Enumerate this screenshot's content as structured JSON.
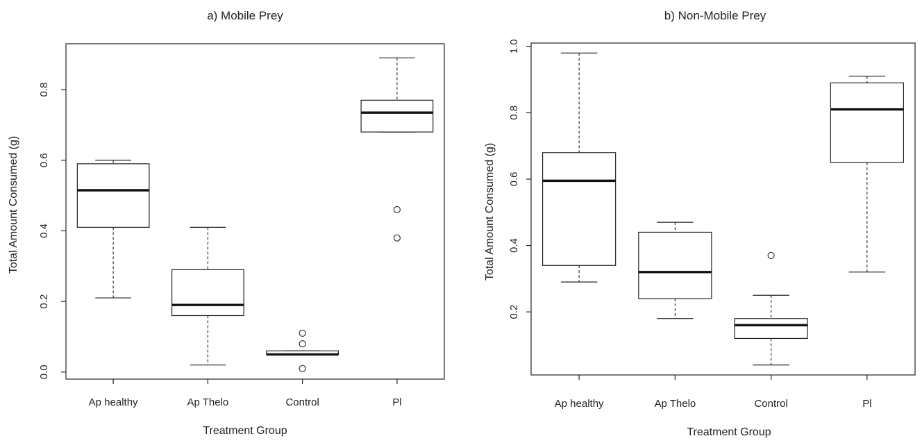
{
  "chart_data": [
    {
      "type": "box",
      "title": "a) Mobile Prey",
      "xlabel": "Treatment Group",
      "ylabel": "Total Amount Consumed (g)",
      "categories": [
        "Ap healthy",
        "Ap Thelo",
        "Control",
        "Pl"
      ],
      "ylim": [
        -0.02,
        0.93
      ],
      "yticks": [
        0.0,
        0.2,
        0.4,
        0.6,
        0.8
      ],
      "ytick_labels": [
        "0.0",
        "0.2",
        "0.4",
        "0.6",
        "0.8"
      ],
      "grid": false,
      "boxes": [
        {
          "category": "Ap healthy",
          "whisker_low": 0.21,
          "q1": 0.41,
          "median": 0.515,
          "q3": 0.59,
          "whisker_high": 0.6,
          "outliers": []
        },
        {
          "category": "Ap Thelo",
          "whisker_low": 0.02,
          "q1": 0.16,
          "median": 0.19,
          "q3": 0.29,
          "whisker_high": 0.41,
          "outliers": []
        },
        {
          "category": "Control",
          "whisker_low": 0.05,
          "q1": 0.05,
          "median": 0.05,
          "q3": 0.06,
          "whisker_high": 0.06,
          "outliers": [
            0.11,
            0.08,
            0.01
          ]
        },
        {
          "category": "Pl",
          "whisker_low": 0.68,
          "q1": 0.68,
          "median": 0.735,
          "q3": 0.77,
          "whisker_high": 0.89,
          "outliers": [
            0.46,
            0.38
          ]
        }
      ]
    },
    {
      "type": "box",
      "title": "b) Non-Mobile Prey",
      "xlabel": "Treatment Group",
      "ylabel": "Total Amount Consumed (g)",
      "categories": [
        "Ap healthy",
        "Ap Thelo",
        "Control",
        "Pl"
      ],
      "ylim": [
        0.01,
        1.01
      ],
      "yticks": [
        0.2,
        0.4,
        0.6,
        0.8,
        1.0
      ],
      "ytick_labels": [
        "0.2",
        "0.4",
        "0.6",
        "0.8",
        "1.0"
      ],
      "grid": false,
      "boxes": [
        {
          "category": "Ap healthy",
          "whisker_low": 0.29,
          "q1": 0.34,
          "median": 0.595,
          "q3": 0.68,
          "whisker_high": 0.98,
          "outliers": []
        },
        {
          "category": "Ap Thelo",
          "whisker_low": 0.18,
          "q1": 0.24,
          "median": 0.32,
          "q3": 0.44,
          "whisker_high": 0.47,
          "outliers": []
        },
        {
          "category": "Control",
          "whisker_low": 0.04,
          "q1": 0.12,
          "median": 0.16,
          "q3": 0.18,
          "whisker_high": 0.25,
          "outliers": [
            0.37
          ]
        },
        {
          "category": "Pl",
          "whisker_low": 0.32,
          "q1": 0.65,
          "median": 0.81,
          "q3": 0.89,
          "whisker_high": 0.91,
          "outliers": []
        }
      ]
    }
  ]
}
